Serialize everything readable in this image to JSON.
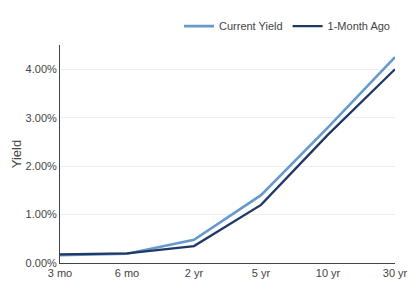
{
  "chart_data": {
    "type": "line",
    "ylabel": "Yield",
    "categories": [
      "3 mo",
      "6 mo",
      "2 yr",
      "5 yr",
      "10 yr",
      "30 yr"
    ],
    "series": [
      {
        "name": "Current Yield",
        "color": "#6699CC",
        "values": [
          0.0016,
          0.0019,
          0.0048,
          0.014,
          0.028,
          0.0425
        ]
      },
      {
        "name": "1-Month Ago",
        "color": "#1F3864",
        "values": [
          0.0018,
          0.002,
          0.0035,
          0.012,
          0.0265,
          0.04
        ]
      }
    ],
    "ylim": [
      0,
      0.045
    ],
    "yticks": [
      {
        "value": 0.0,
        "label": "0.00%"
      },
      {
        "value": 0.01,
        "label": "1.00%"
      },
      {
        "value": 0.02,
        "label": "2.00%"
      },
      {
        "value": 0.03,
        "label": "3.00%"
      },
      {
        "value": 0.04,
        "label": "4.00%"
      }
    ],
    "grid": true,
    "legend": "upper right"
  }
}
